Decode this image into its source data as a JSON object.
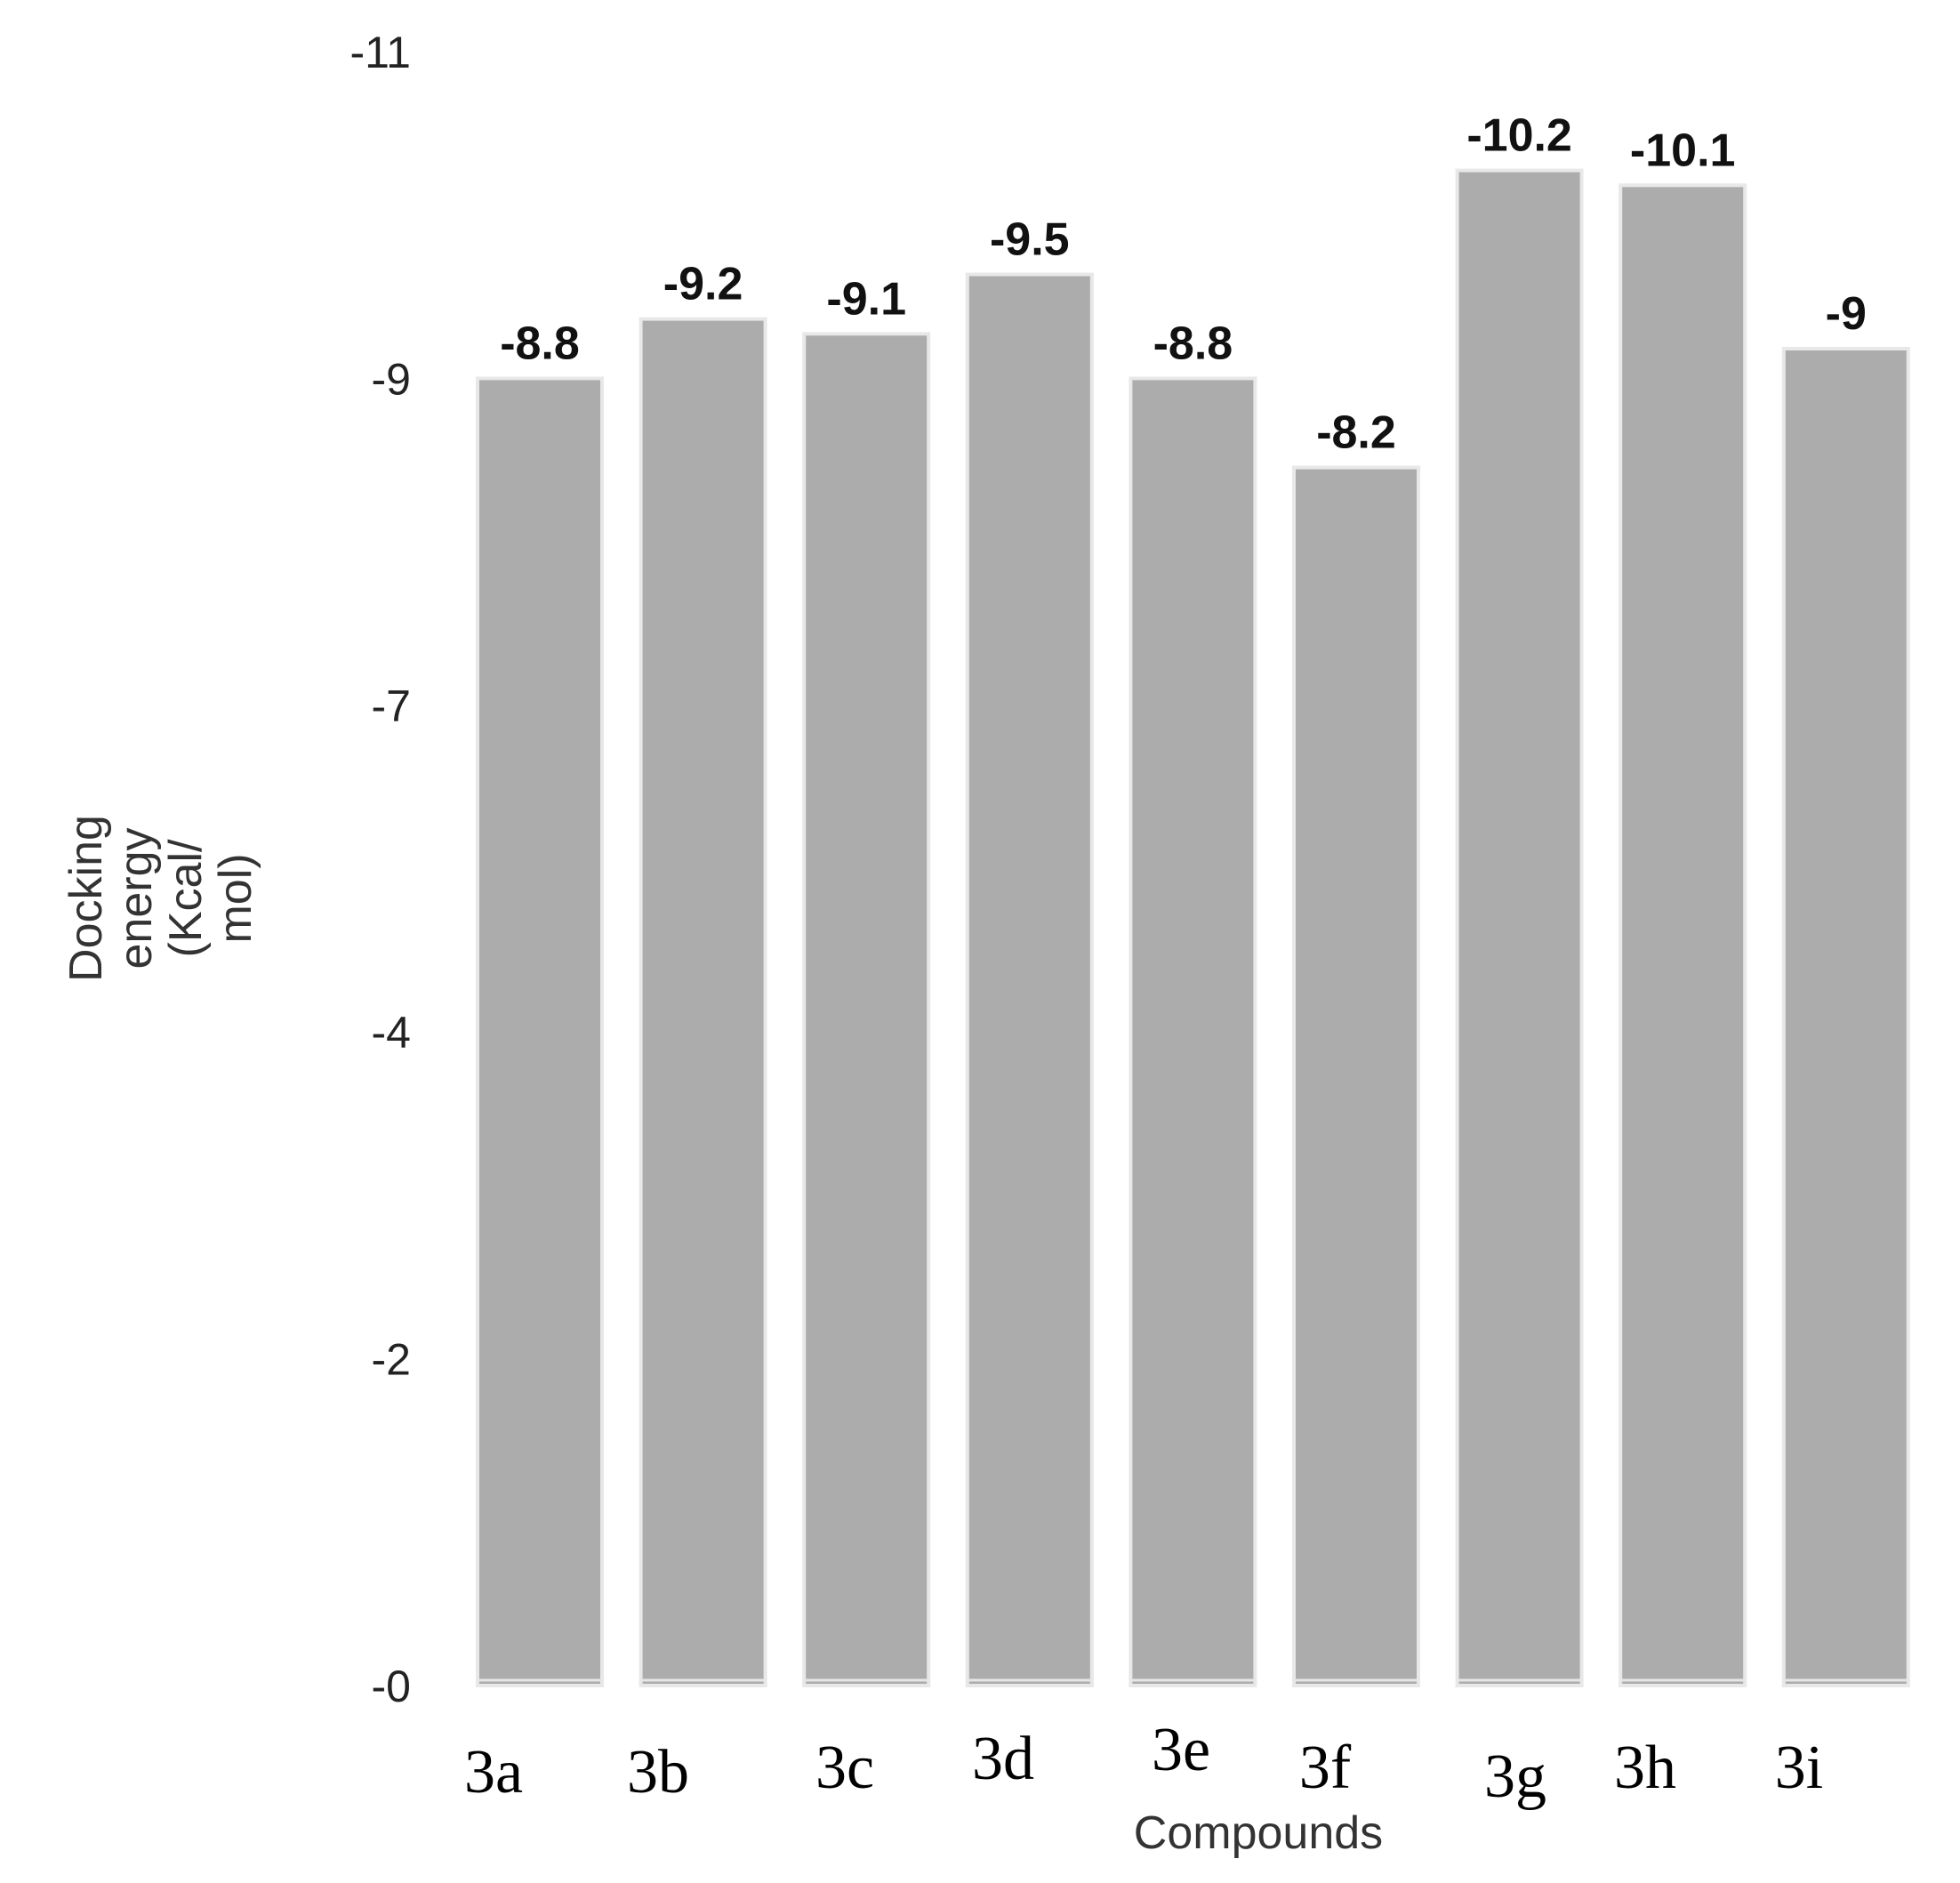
{
  "chart_data": {
    "type": "bar",
    "categories": [
      "3a",
      "3b",
      "3c",
      "3d",
      "3e",
      "3f",
      "3g",
      "3h",
      "3i"
    ],
    "values": [
      -8.8,
      -9.2,
      -9.1,
      -9.5,
      -8.8,
      -8.2,
      -10.2,
      -10.1,
      -9
    ],
    "data_labels": [
      "-8.8",
      "-9.2",
      "-9.1",
      "-9.5",
      "-8.8",
      "-8.2",
      "-10.2",
      "-10.1",
      "-9"
    ],
    "yticks": [
      {
        "label": "-11",
        "value": -11
      },
      {
        "label": "-9",
        "value": -8.8
      },
      {
        "label": "-7",
        "value": -6.6
      },
      {
        "label": "-4",
        "value": -4.4
      },
      {
        "label": "-2",
        "value": -2.2
      },
      {
        "label": "-0",
        "value": 0
      }
    ],
    "xlabel": "Compounds",
    "ylabel_lines": [
      "Docking",
      "energy",
      "(Kcal/",
      "mol)"
    ],
    "ylim": [
      0,
      -11
    ],
    "grid": false,
    "colors": {
      "bar": "#acacac",
      "bar_edge": "#e8e8e8"
    }
  }
}
